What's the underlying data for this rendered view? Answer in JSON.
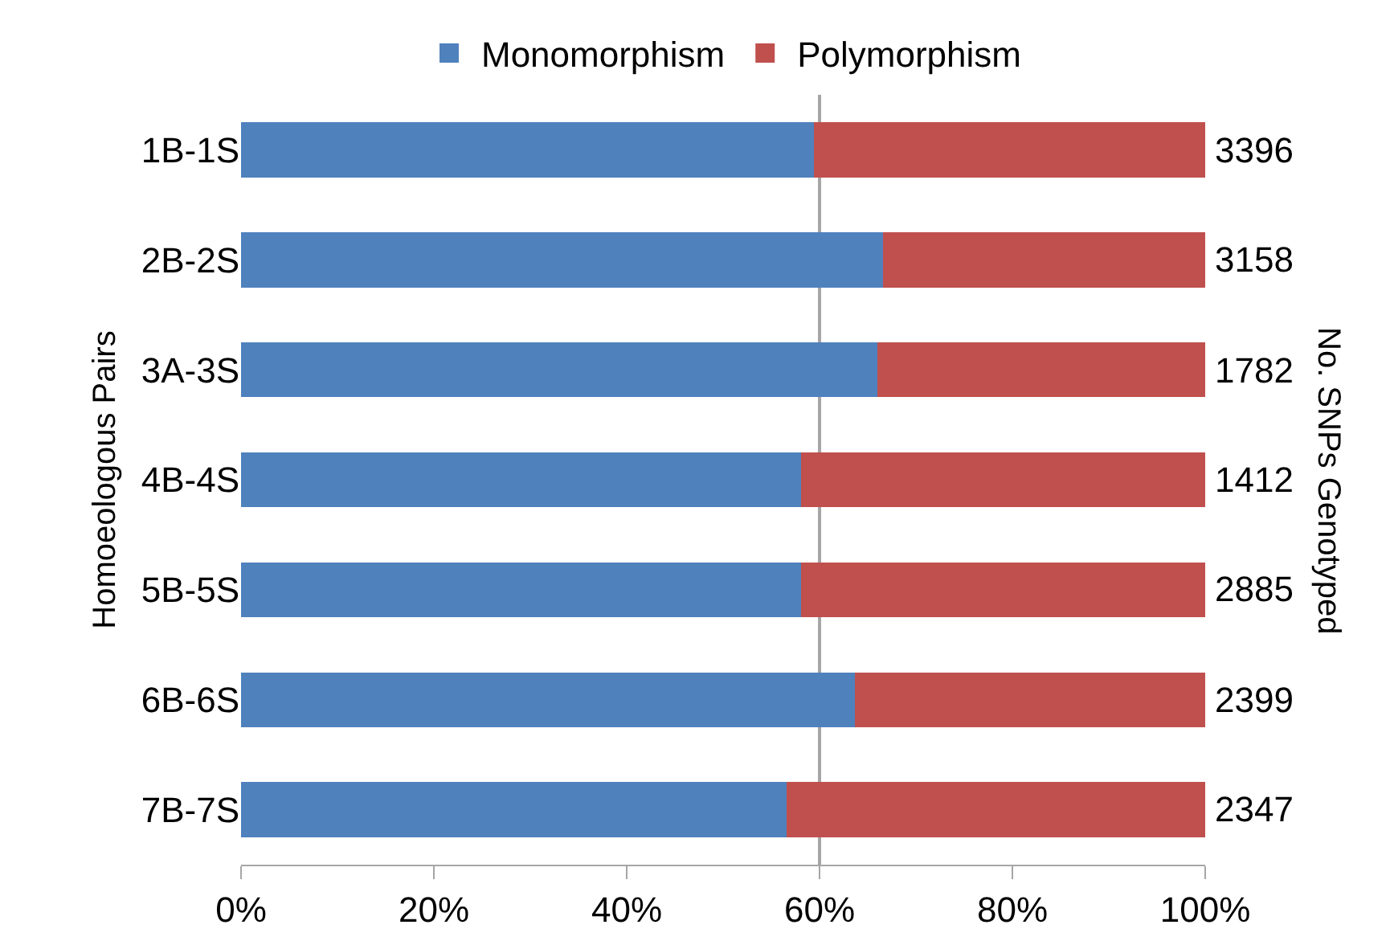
{
  "chart_data": {
    "type": "bar",
    "orientation": "horizontal",
    "stacked": true,
    "categories": [
      "1B-1S",
      "2B-2S",
      "3A-3S",
      "4B-4S",
      "5B-5S",
      "6B-6S",
      "7B-7S"
    ],
    "series": [
      {
        "name": "Monomorphism",
        "color": "#4f81bd",
        "values": [
          59.4,
          66.6,
          66.0,
          58.1,
          58.1,
          63.7,
          56.6
        ]
      },
      {
        "name": "Polymorphism",
        "color": "#c0504d",
        "values": [
          40.6,
          33.4,
          34.0,
          41.9,
          41.9,
          36.3,
          43.4
        ]
      }
    ],
    "xlim": [
      0,
      100
    ],
    "xticks": [
      {
        "value": 0,
        "label": "0%"
      },
      {
        "value": 20,
        "label": "20%"
      },
      {
        "value": 40,
        "label": "40%"
      },
      {
        "value": 60,
        "label": "60%"
      },
      {
        "value": 80,
        "label": "80%"
      },
      {
        "value": 100,
        "label": "100%"
      }
    ],
    "ylabel": "Homoeologous Pairs",
    "y2label": "No. SNPs Genotyped",
    "annotations": [
      "3396",
      "3158",
      "1782",
      "1412",
      "2885",
      "2399",
      "2347"
    ],
    "ref_lines": [
      {
        "axis": "x",
        "value": 60,
        "color": "#a6a6a6"
      }
    ],
    "grid": false,
    "legend": "top"
  }
}
